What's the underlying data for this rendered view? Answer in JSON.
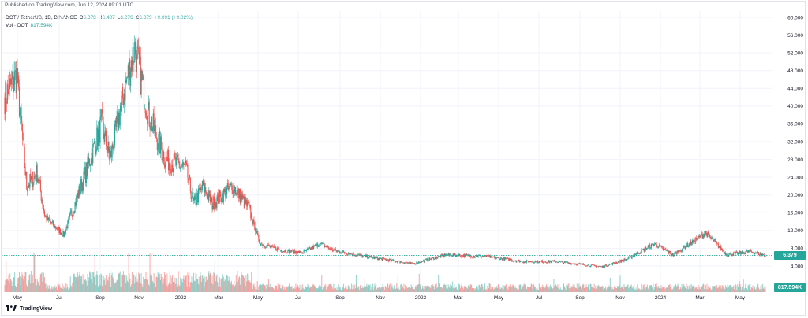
{
  "header": {
    "published": "Published on TradingView.com, Jun 12, 2024 09:01 UTC"
  },
  "legend": {
    "symbol": "DOT / TetherUS, 1D, BINANCE",
    "o_label": "O",
    "o_value": "6.378",
    "h_label": "H",
    "h_value": "6.437",
    "l_label": "L",
    "l_value": "6.276",
    "c_label": "C",
    "c_value": "6.379",
    "change": "+0.001 (+0.02%)",
    "volume_label": "Vol · DOT",
    "volume_value": "817.594K"
  },
  "last_price_tag": "6.379",
  "volume_tag": "817.594K",
  "brand": {
    "name": "TradingView",
    "icon": "tradingview-logo-icon"
  },
  "colors": {
    "up": "#26a69a",
    "down": "#ef5350",
    "last_price_line": "#26a69a"
  },
  "chart_data": {
    "type": "candlestick",
    "title": "DOT / TetherUS, 1D, BINANCE",
    "y_ticks": [
      "60.000",
      "56.000",
      "52.000",
      "48.000",
      "44.000",
      "40.000",
      "36.000",
      "32.000",
      "28.000",
      "24.000",
      "20.000",
      "16.000",
      "12.000",
      "8.000",
      "4.000"
    ],
    "y_range": [
      0,
      60
    ],
    "x_ticks": [
      "May",
      "Jul",
      "Sep",
      "Nov",
      "2022",
      "Mar",
      "May",
      "Jul",
      "Sep",
      "Nov",
      "2023",
      "Mar",
      "May",
      "Jul",
      "Sep",
      "Nov",
      "2024",
      "Mar",
      "May"
    ],
    "x_range": [
      "2021-04-22",
      "2024-06-12"
    ],
    "series_anchors": [
      {
        "x": "2021-04-22",
        "y": 42
      },
      {
        "x": "2021-05-10",
        "y": 47
      },
      {
        "x": "2021-05-25",
        "y": 22
      },
      {
        "x": "2021-06-10",
        "y": 25
      },
      {
        "x": "2021-06-22",
        "y": 15
      },
      {
        "x": "2021-07-20",
        "y": 11
      },
      {
        "x": "2021-08-20",
        "y": 24
      },
      {
        "x": "2021-09-15",
        "y": 36
      },
      {
        "x": "2021-09-28",
        "y": 28
      },
      {
        "x": "2021-10-20",
        "y": 44
      },
      {
        "x": "2021-11-04",
        "y": 53
      },
      {
        "x": "2021-11-25",
        "y": 38
      },
      {
        "x": "2021-12-20",
        "y": 28
      },
      {
        "x": "2022-01-20",
        "y": 26
      },
      {
        "x": "2022-02-01",
        "y": 18
      },
      {
        "x": "2022-02-15",
        "y": 22
      },
      {
        "x": "2022-03-01",
        "y": 18
      },
      {
        "x": "2022-04-01",
        "y": 22
      },
      {
        "x": "2022-04-25",
        "y": 17
      },
      {
        "x": "2022-05-12",
        "y": 9
      },
      {
        "x": "2022-06-15",
        "y": 7.5
      },
      {
        "x": "2022-07-15",
        "y": 7
      },
      {
        "x": "2022-08-10",
        "y": 9
      },
      {
        "x": "2022-09-01",
        "y": 7.5
      },
      {
        "x": "2022-10-15",
        "y": 6.2
      },
      {
        "x": "2022-11-15",
        "y": 5.5
      },
      {
        "x": "2022-12-28",
        "y": 4.5
      },
      {
        "x": "2023-02-15",
        "y": 6.5
      },
      {
        "x": "2023-04-15",
        "y": 6.2
      },
      {
        "x": "2023-06-15",
        "y": 5
      },
      {
        "x": "2023-08-01",
        "y": 5
      },
      {
        "x": "2023-10-10",
        "y": 3.8
      },
      {
        "x": "2023-11-15",
        "y": 5.5
      },
      {
        "x": "2023-12-28",
        "y": 9
      },
      {
        "x": "2024-01-25",
        "y": 6.5
      },
      {
        "x": "2024-03-14",
        "y": 11.5
      },
      {
        "x": "2024-04-15",
        "y": 6.5
      },
      {
        "x": "2024-05-20",
        "y": 7.3
      },
      {
        "x": "2024-06-12",
        "y": 6.38
      }
    ],
    "last_price": 6.379,
    "last_volume": "817.594K"
  }
}
